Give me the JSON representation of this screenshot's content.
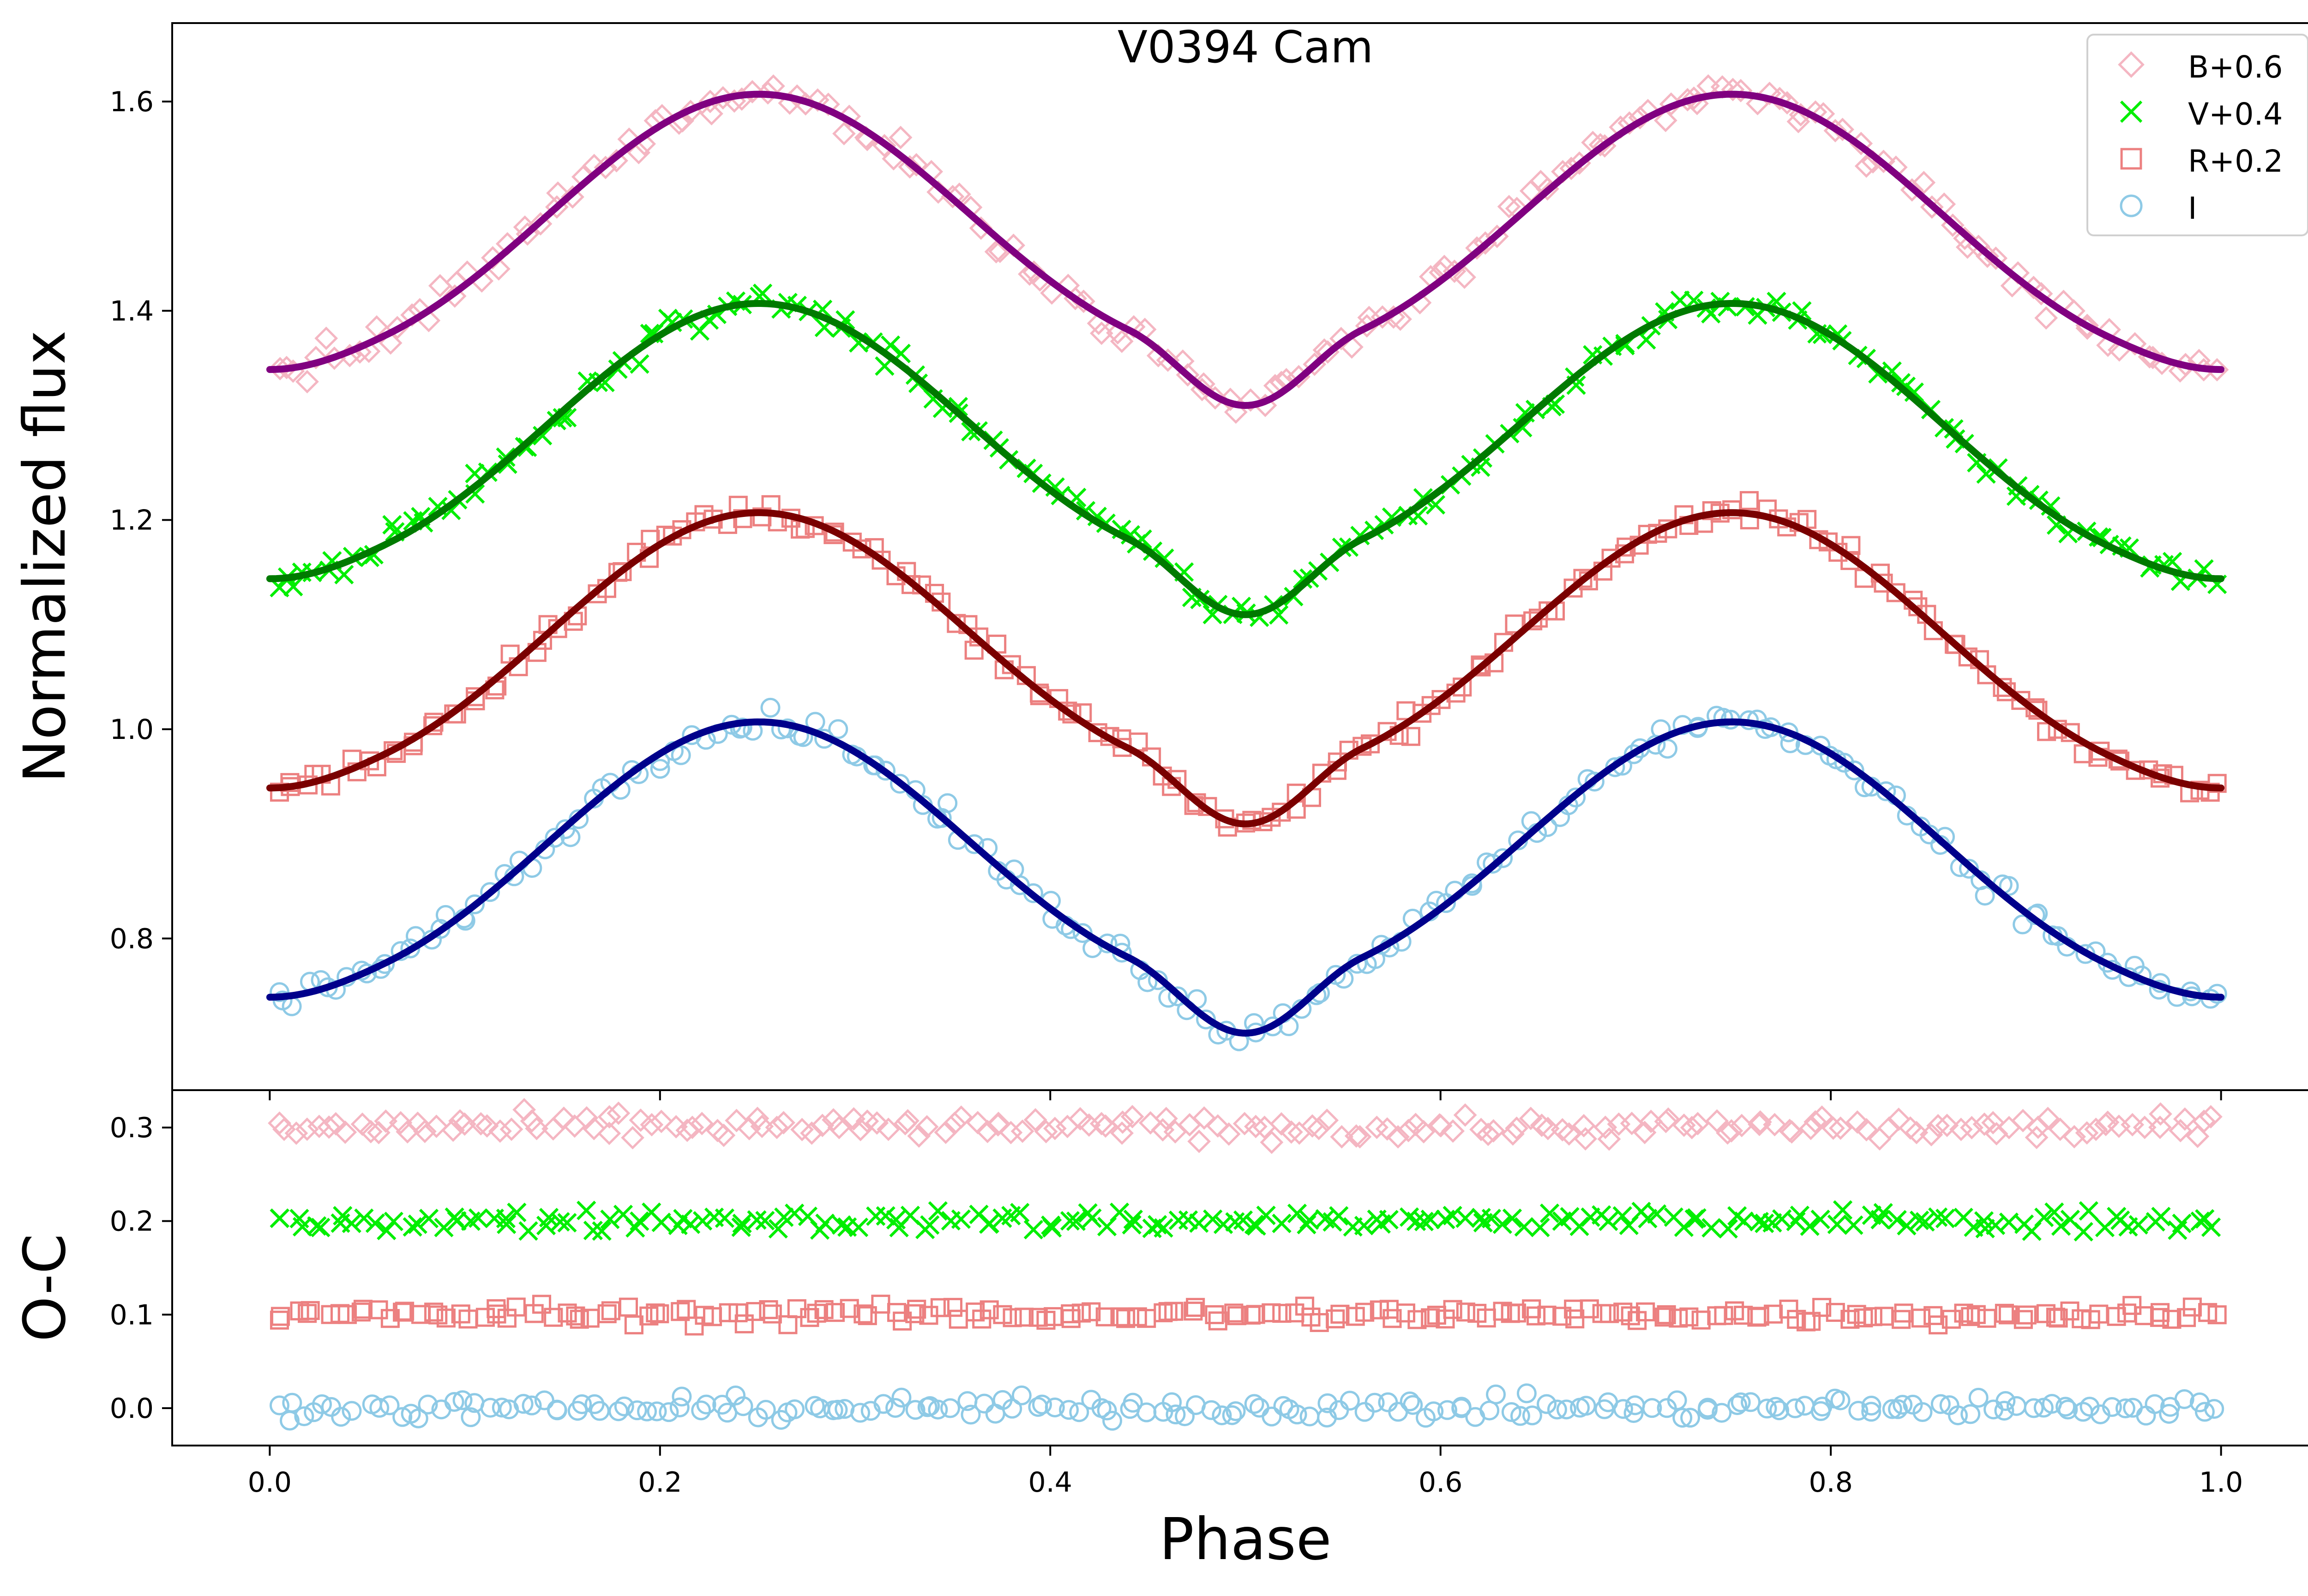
{
  "chart_data": [
    {
      "type": "scatter",
      "title": "V0394 Cam",
      "xlabel": "",
      "ylabel": "Normalized flux",
      "xlim": [
        -0.05,
        1.05
      ],
      "ylim": [
        0.655,
        1.675
      ],
      "xticks": [
        "0.0",
        "0.2",
        "0.4",
        "0.6",
        "0.8",
        "1.0"
      ],
      "xtick_values": [
        0.0,
        0.2,
        0.4,
        0.6,
        0.8,
        1.0
      ],
      "yticks": [
        "0.8",
        "1.0",
        "1.2",
        "1.4",
        "1.6"
      ],
      "ytick_values": [
        0.8,
        1.0,
        1.2,
        1.4,
        1.6
      ],
      "legend_position": "top-right",
      "model": {
        "mean": 0.872,
        "cos2_amp": -0.1275,
        "cos1_amp": -0.0025,
        "cos4_amp": 0.0075,
        "eclipse_depth": 0.045,
        "eclipse_halfwidth": 0.06,
        "eclipse_center": 0.5
      },
      "series": [
        {
          "name": "B+0.6",
          "offset": 0.6,
          "marker": "diamond",
          "marker_color": "#f4b6c2",
          "line_color": "#800080",
          "scatter": 0.011
        },
        {
          "name": "V+0.4",
          "offset": 0.4,
          "marker": "x",
          "marker_color": "#00ee00",
          "line_color": "#007a00",
          "scatter": 0.009
        },
        {
          "name": "R+0.2",
          "offset": 0.2,
          "marker": "square",
          "marker_color": "#ec8080",
          "line_color": "#7a0000",
          "scatter": 0.008
        },
        {
          "name": "I",
          "offset": 0.0,
          "marker": "circle",
          "marker_color": "#8ecae6",
          "line_color": "#00008b",
          "scatter": 0.009
        }
      ]
    },
    {
      "type": "scatter",
      "title": "",
      "xlabel": "Phase",
      "ylabel": "O-C",
      "xlim": [
        -0.05,
        1.05
      ],
      "ylim": [
        -0.04,
        0.34
      ],
      "xticks": [
        "0.0",
        "0.2",
        "0.4",
        "0.6",
        "0.8",
        "1.0"
      ],
      "xtick_values": [
        0.0,
        0.2,
        0.4,
        0.6,
        0.8,
        1.0
      ],
      "yticks": [
        "0.0",
        "0.1",
        "0.2",
        "0.3"
      ],
      "ytick_values": [
        0.0,
        0.1,
        0.2,
        0.3
      ],
      "series": [
        {
          "name": "B+0.6",
          "offset": 0.3,
          "marker": "diamond",
          "marker_color": "#f4b6c2",
          "scatter": 0.009
        },
        {
          "name": "V+0.4",
          "offset": 0.2,
          "marker": "x",
          "marker_color": "#00ee00",
          "scatter": 0.008
        },
        {
          "name": "R+0.2",
          "offset": 0.1,
          "marker": "square",
          "marker_color": "#ec8080",
          "scatter": 0.007
        },
        {
          "name": "I",
          "offset": 0.0,
          "marker": "circle",
          "marker_color": "#8ecae6",
          "scatter": 0.008
        }
      ]
    }
  ]
}
